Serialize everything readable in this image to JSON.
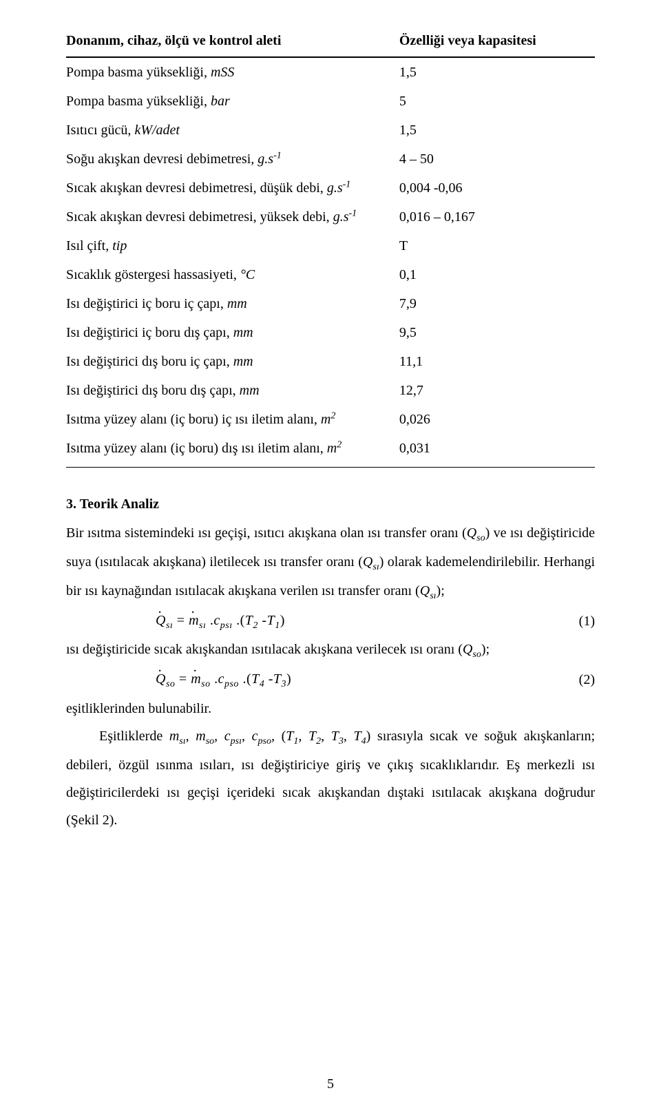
{
  "table": {
    "header_left": "Donanım, cihaz, ölçü ve kontrol aleti",
    "header_right": "Özelliği veya kapasitesi",
    "rows": [
      {
        "l_plain": "Pompa basma yüksekliği, ",
        "l_ital": "mSS",
        "r": "1,5"
      },
      {
        "l_plain": "Pompa basma yüksekliği, ",
        "l_ital": "bar",
        "r": "5"
      },
      {
        "l_plain": "Isıtıcı gücü, ",
        "l_ital": "kW/adet",
        "r": "1,5"
      },
      {
        "l_plain": "Soğu akışkan devresi debimetresi, ",
        "l_ital": "g.s",
        "l_sup": "-1",
        "r": "4 – 50"
      },
      {
        "l_plain": "Sıcak akışkan devresi debimetresi, düşük debi, ",
        "l_ital": "g.s",
        "l_sup_wrap": "-1",
        "r": "0,004 -0,06"
      },
      {
        "l_plain": "Sıcak akışkan devresi debimetresi, yüksek debi, ",
        "l_ital": "g.s",
        "l_sup": "-1",
        "r": "0,016 – 0,167"
      },
      {
        "l_plain": "Isıl çift, ",
        "l_ital": "tip",
        "r": "T"
      },
      {
        "l_plain": "Sıcaklık göstergesi hassasiyeti, ",
        "l_ital": "°C",
        "r": "0,1"
      },
      {
        "l_plain": "Isı değiştirici iç boru iç çapı, ",
        "l_ital": "mm",
        "r": "7,9"
      },
      {
        "l_plain": "Isı değiştirici iç boru dış çapı, ",
        "l_ital": "mm",
        "r": "9,5"
      },
      {
        "l_plain": "Isı değiştirici dış boru iç çapı, ",
        "l_ital": "mm",
        "r": "11,1"
      },
      {
        "l_plain": "Isı değiştirici dış boru dış çapı, ",
        "l_ital": "mm",
        "r": "12,7"
      },
      {
        "l_plain": "Isıtma yüzey alanı (iç boru) iç ısı iletim alanı, ",
        "l_ital": "m",
        "l_sup": "2",
        "r": "0,026"
      },
      {
        "l_plain": "Isıtma yüzey alanı (iç boru) dış ısı iletim alanı, ",
        "l_ital": "m",
        "l_sup": "2",
        "r": "0,031"
      }
    ]
  },
  "section": {
    "heading": "3. Teorik Analiz",
    "p1a": "Bir ısıtma sistemindeki ısı geçişi, ısıtıcı akışkana olan ısı transfer oranı (",
    "p1b": ") ve ısı değiştiricide suya (ısıtılacak akışkana) iletilecek ısı transfer oranı (",
    "p1c": ") olarak kademelendirilebilir. Herhangi bir ısı kaynağından ısıtılacak akışkana verilen ısı transfer oranı (",
    "p1d": ");",
    "sym_Q": "Q",
    "sub_so": "so",
    "sub_si": "sı",
    "eq1_num": "(1)",
    "p2a": "ısı değiştiricide sıcak akışkandan ısıtılacak akışkana verilecek ısı oranı (",
    "p2b": ");",
    "eq2_num": "(2)",
    "p3": "eşitliklerinden bulunabilir.",
    "p4a": "Eşitliklerde ",
    "p4_m": "m",
    "p4_c": "c",
    "p4_T1": "T",
    "p4b": ", ",
    "p4c": ") sırasıyla sıcak ve soğuk akışkanların; debileri, özgül ısınma ısıları, ısı değiştiriciye giriş ve çıkış sıcaklıklarıdır. Eş merkezli ısı değiştiricilerdeki ısı geçişi içerideki sıcak akışkandan dıştaki ısıtılacak akışkana doğrudur (Şekil 2).",
    "sub_psi": "psı",
    "sub_pso": "pso",
    "sub_1": "1",
    "sub_2": "2",
    "sub_3": "3",
    "sub_4": "4"
  },
  "page_number": "5"
}
